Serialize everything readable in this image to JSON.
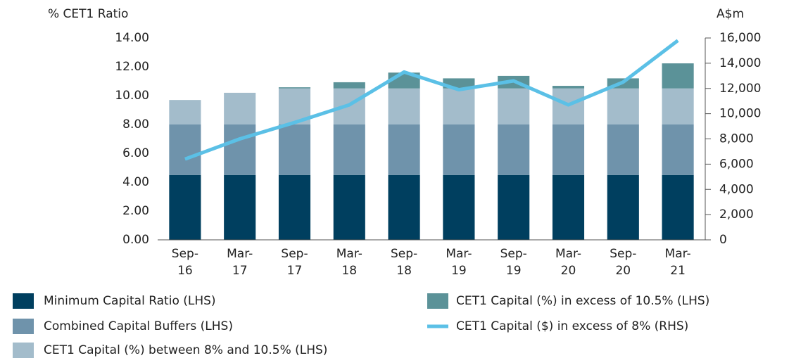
{
  "chart_data": {
    "type": "bar_line",
    "y_label": "% CET1 Ratio",
    "y2_label": "A$m",
    "categories": [
      "Sep-16",
      "Mar-17",
      "Sep-17",
      "Mar-18",
      "Sep-18",
      "Mar-19",
      "Sep-19",
      "Mar-20",
      "Sep-20",
      "Mar-21"
    ],
    "series": [
      {
        "name": "Minimum Capital Ratio (LHS)",
        "color": "#003f5f",
        "values": [
          4.5,
          4.5,
          4.5,
          4.5,
          4.5,
          4.5,
          4.5,
          4.5,
          4.5,
          4.5
        ]
      },
      {
        "name": "Combined Capital Buffers (LHS)",
        "color": "#6f93ab",
        "values": [
          3.5,
          3.5,
          3.5,
          3.5,
          3.5,
          3.5,
          3.5,
          3.5,
          3.5,
          3.5
        ]
      },
      {
        "name": "CET1 Capital (%) between 8% and 10.5% (LHS)",
        "color": "#a3bccb",
        "values": [
          1.7,
          2.2,
          2.5,
          2.5,
          2.5,
          2.5,
          2.5,
          2.5,
          2.5,
          2.5
        ]
      },
      {
        "name": "CET1 Capital (%) in excess of 10.5% (LHS)",
        "color": "#5b9298",
        "values": [
          0,
          0,
          0.08,
          0.43,
          1.1,
          0.7,
          0.87,
          0.18,
          0.7,
          1.74
        ]
      },
      {
        "name": "CET1 Capital ($) in excess of 8% (RHS)",
        "color": "#5bc0e6",
        "axis": "y2",
        "values": [
          6400,
          8000,
          9300,
          10700,
          13300,
          11900,
          12600,
          10700,
          12500,
          15800
        ]
      }
    ],
    "ylim": [
      0,
      14
    ],
    "yticks": [
      {
        "value": 0,
        "label": "0.00"
      },
      {
        "value": 2,
        "label": "2.00"
      },
      {
        "value": 4,
        "label": "4.00"
      },
      {
        "value": 6,
        "label": "6.00"
      },
      {
        "value": 8,
        "label": "8.00"
      },
      {
        "value": 10,
        "label": "10.00"
      },
      {
        "value": 12,
        "label": "12.00"
      },
      {
        "value": 14,
        "label": "14.00"
      }
    ],
    "y2lim": [
      0,
      16000
    ],
    "y2ticks": [
      0,
      {
        "value": 2000,
        "label": "2,000"
      },
      {
        "value": 4000,
        "label": "4,000"
      },
      {
        "value": 6000,
        "label": "6,000"
      },
      {
        "value": 8000,
        "label": "8,000"
      },
      {
        "value": 10000,
        "label": "10,000"
      },
      {
        "value": 12000,
        "label": "12,000"
      },
      {
        "value": 14000,
        "label": "14,000"
      },
      {
        "value": 16000,
        "label": "16,000"
      }
    ]
  }
}
